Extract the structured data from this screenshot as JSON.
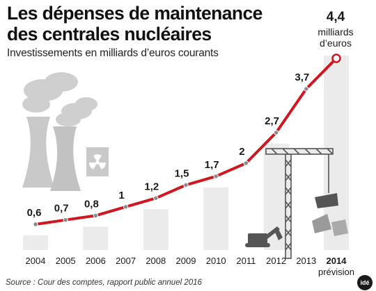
{
  "header": {
    "title_line1": "Les dépenses de maintenance",
    "title_line2": "des centrales nucléaires",
    "subtitle": "Investissements en milliards d’euros courants"
  },
  "footer": {
    "source": "Source : Cour des comptes, rapport public annuel 2016",
    "logo": "idé"
  },
  "chart_data": {
    "type": "line",
    "title": "Les dépenses de maintenance des centrales nucléaires",
    "subtitle": "Investissements en milliards d’euros courants",
    "categories": [
      "2004",
      "2005",
      "2006",
      "2007",
      "2008",
      "2009",
      "2010",
      "2011",
      "2012",
      "2013",
      "2014"
    ],
    "x_sublabels": [
      "",
      "",
      "",
      "",
      "",
      "",
      "",
      "",
      "",
      "",
      "prévision"
    ],
    "series": [
      {
        "values": [
          0.6,
          0.7,
          0.8,
          1,
          1.2,
          1.5,
          1.7,
          2,
          2.7,
          3.7,
          4.4
        ],
        "labels": [
          "0,6",
          "0,7",
          "0,8",
          "1",
          "1,2",
          "1,5",
          "1,7",
          "2",
          "2,7",
          "3,7",
          "4,4"
        ]
      }
    ],
    "last_point_unit": [
      "milliards",
      "d’euros"
    ],
    "ylim": [
      0,
      4.4
    ],
    "xlabel": "",
    "ylabel": "",
    "grid": false,
    "colors": {
      "line": "#d0161e",
      "marker": "#8a8a8a",
      "background_bars": "#ebebeb",
      "illustration": "#c9c9c9",
      "illustration_dark": "#555555"
    }
  }
}
